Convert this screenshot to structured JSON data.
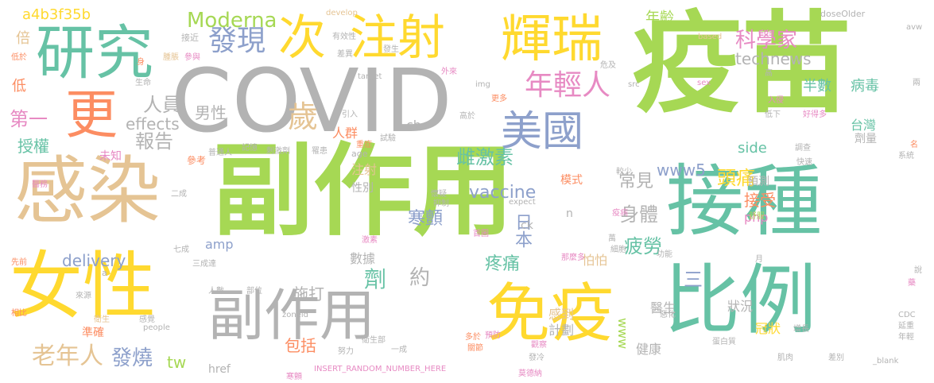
{
  "words": [
    {
      "text": "副作用",
      "color": "#a6d854"
    },
    {
      "text": "疫苗",
      "color": "#a6d854"
    },
    {
      "text": "COVID",
      "color": "#b3b3b3"
    },
    {
      "text": "接種",
      "color": "#66c2a5"
    },
    {
      "text": "感染",
      "color": "#e5c494"
    },
    {
      "text": "女性",
      "color": "#ffd92f"
    },
    {
      "text": "比例",
      "color": "#66c2a5"
    },
    {
      "text": "免疫",
      "color": "#ffd92f"
    },
    {
      "text": "副作用",
      "color": "#b3b3b3"
    },
    {
      "text": "研究",
      "color": "#66c2a5"
    },
    {
      "text": "注射",
      "color": "#ffd92f"
    },
    {
      "text": "輝瑞",
      "color": "#ffd92f"
    },
    {
      "text": "次",
      "color": "#ffd92f"
    },
    {
      "text": "更",
      "color": "#fc8d62"
    },
    {
      "text": "美國",
      "color": "#8da0cb"
    },
    {
      "text": "發現",
      "color": "#8da0cb"
    },
    {
      "text": "Moderna",
      "color": "#a6d854"
    },
    {
      "text": "年輕人",
      "color": "#e78ac3"
    },
    {
      "text": "科學家",
      "color": "#e78ac3"
    },
    {
      "text": "technews",
      "color": "#b3b3b3"
    },
    {
      "text": "年齡",
      "color": "#a6d854"
    },
    {
      "text": "歲",
      "color": "#e5c494"
    },
    {
      "text": "人員",
      "color": "#b3b3b3"
    },
    {
      "text": "男性",
      "color": "#b3b3b3"
    },
    {
      "text": "報告",
      "color": "#b3b3b3"
    },
    {
      "text": "第一",
      "color": "#e78ac3"
    },
    {
      "text": "effects",
      "color": "#b3b3b3"
    },
    {
      "text": "授權",
      "color": "#66c2a5"
    },
    {
      "text": "雌激素",
      "color": "#66c2a5"
    },
    {
      "text": "www5",
      "color": "#8da0cb"
    },
    {
      "text": "常見",
      "color": "#b3b3b3"
    },
    {
      "text": "頭痛",
      "color": "#ffd92f"
    },
    {
      "text": "身體",
      "color": "#b3b3b3"
    },
    {
      "text": "接受",
      "color": "#fc8d62"
    },
    {
      "text": "疲勞",
      "color": "#66c2a5"
    },
    {
      "text": "vaccine",
      "color": "#8da0cb"
    },
    {
      "text": "delivery",
      "color": "#8da0cb"
    },
    {
      "text": "老年人",
      "color": "#e5c494"
    },
    {
      "text": "發燒",
      "color": "#8da0cb"
    },
    {
      "text": "寒顫",
      "color": "#8da0cb"
    },
    {
      "text": "疼痛",
      "color": "#66c2a5"
    },
    {
      "text": "約",
      "color": "#b3b3b3"
    },
    {
      "text": "劑",
      "color": "#66c2a5"
    },
    {
      "text": "包括",
      "color": "#fc8d62"
    },
    {
      "text": "施打",
      "color": "#b3b3b3"
    },
    {
      "text": "半數",
      "color": "#66c2a5"
    },
    {
      "text": "病毒",
      "color": "#66c2a5"
    },
    {
      "text": "台灣",
      "color": "#66c2a5"
    },
    {
      "text": "side",
      "color": "#66c2a5"
    },
    {
      "text": "日本",
      "color": "#8da0cb"
    },
    {
      "text": "三",
      "color": "#8da0cb"
    },
    {
      "text": "健康",
      "color": "#b3b3b3"
    },
    {
      "text": "冠狀",
      "color": "#ffd92f"
    },
    {
      "text": "計劃",
      "color": "#b3b3b3"
    },
    {
      "text": "感到",
      "color": "#e5c494"
    },
    {
      "text": "狀況",
      "color": "#b3b3b3"
    },
    {
      "text": "醫生",
      "color": "#b3b3b3"
    },
    {
      "text": "tw",
      "color": "#a6d854"
    },
    {
      "text": "www",
      "color": "#a6d854"
    },
    {
      "text": "href",
      "color": "#b3b3b3"
    },
    {
      "text": "amp",
      "color": "#8da0cb"
    },
    {
      "text": "php",
      "color": "#e78ac3"
    },
    {
      "text": "cb",
      "color": "#b3b3b3"
    },
    {
      "text": "ck",
      "color": "#b3b3b3"
    },
    {
      "text": "a4b3f35b",
      "color": "#ffd92f"
    },
    {
      "text": "倍",
      "color": "#e5c494"
    },
    {
      "text": "低",
      "color": "#fc8d62"
    },
    {
      "text": "劑量",
      "color": "#b3b3b3"
    },
    {
      "text": "預測",
      "color": "#b3b3b3"
    },
    {
      "text": "數據",
      "color": "#b3b3b3"
    },
    {
      "text": "人群",
      "color": "#fc8d62"
    },
    {
      "text": "注射",
      "color": "#e5c494"
    },
    {
      "text": "性別",
      "color": "#b3b3b3"
    },
    {
      "text": "模式",
      "color": "#fc8d62"
    },
    {
      "text": "怕怕",
      "color": "#e5c494"
    },
    {
      "text": "n",
      "color": "#b3b3b3"
    },
    {
      "text": "參考",
      "color": "#fc8d62"
    },
    {
      "text": "未知",
      "color": "#e78ac3"
    },
    {
      "text": "接近",
      "color": "#b3b3b3"
    },
    {
      "text": "有效性",
      "color": "#b3b3b3"
    },
    {
      "text": "develop",
      "color": "#e5c494"
    },
    {
      "text": "based",
      "color": "#e5c494"
    },
    {
      "text": "doseOlder",
      "color": "#b3b3b3"
    },
    {
      "text": "target",
      "color": "#b3b3b3"
    },
    {
      "text": "img",
      "color": "#b3b3b3"
    },
    {
      "text": "src",
      "color": "#b3b3b3"
    },
    {
      "text": "sex",
      "color": "#e78ac3"
    },
    {
      "text": "age",
      "color": "#b3b3b3"
    },
    {
      "text": "expect",
      "color": "#b3b3b3"
    },
    {
      "text": "people",
      "color": "#b3b3b3"
    },
    {
      "text": "zoneid",
      "color": "#b3b3b3"
    },
    {
      "text": "_blank",
      "color": "#b3b3b3"
    },
    {
      "text": "INSERT_RANDOM_NUMBER_HERE",
      "color": "#e78ac3"
    },
    {
      "text": "CDC",
      "color": "#b3b3b3"
    },
    {
      "text": "低於",
      "color": "#fc8d62"
    },
    {
      "text": "生命",
      "color": "#b3b3b3"
    },
    {
      "text": "普通人",
      "color": "#b3b3b3"
    },
    {
      "text": "記憶",
      "color": "#b3b3b3"
    },
    {
      "text": "刺激劑",
      "color": "#b3b3b3"
    },
    {
      "text": "罹患",
      "color": "#b3b3b3"
    },
    {
      "text": "重症",
      "color": "#fc8d62"
    },
    {
      "text": "試驗",
      "color": "#b3b3b3"
    },
    {
      "text": "引入",
      "color": "#b3b3b3"
    },
    {
      "text": "高於",
      "color": "#b3b3b3"
    },
    {
      "text": "更多",
      "color": "#fc8d62"
    },
    {
      "text": "外來",
      "color": "#e78ac3"
    },
    {
      "text": "低下",
      "color": "#b3b3b3"
    },
    {
      "text": "好得多",
      "color": "#e78ac3"
    },
    {
      "text": "入侵",
      "color": "#e78ac3"
    },
    {
      "text": "調查",
      "color": "#b3b3b3"
    },
    {
      "text": "快速",
      "color": "#b3b3b3"
    },
    {
      "text": "系統",
      "color": "#b3b3b3"
    },
    {
      "text": "名",
      "color": "#fc8d62"
    },
    {
      "text": "舒服",
      "color": "#a6d854"
    },
    {
      "text": "較少",
      "color": "#b3b3b3"
    },
    {
      "text": "懷疑",
      "color": "#b3b3b3"
    },
    {
      "text": "抑制",
      "color": "#b3b3b3"
    },
    {
      "text": "首圖",
      "color": "#e78ac3"
    },
    {
      "text": "激素",
      "color": "#e78ac3"
    },
    {
      "text": "疫病",
      "color": "#e78ac3"
    },
    {
      "text": "萬",
      "color": "#b3b3b3"
    },
    {
      "text": "細胞",
      "color": "#b3b3b3"
    },
    {
      "text": "那麼多",
      "color": "#e78ac3"
    },
    {
      "text": "功能",
      "color": "#b3b3b3"
    },
    {
      "text": "預防",
      "color": "#e78ac3"
    },
    {
      "text": "觀察",
      "color": "#e78ac3"
    },
    {
      "text": "惡化",
      "color": "#b3b3b3"
    },
    {
      "text": "增長",
      "color": "#b3b3b3"
    },
    {
      "text": "藥",
      "color": "#e78ac3"
    },
    {
      "text": "說",
      "color": "#b3b3b3"
    },
    {
      "text": "衛生部",
      "color": "#b3b3b3"
    },
    {
      "text": "一成",
      "color": "#b3b3b3"
    },
    {
      "text": "多於",
      "color": "#fc8d62"
    },
    {
      "text": "發冷",
      "color": "#b3b3b3"
    },
    {
      "text": "關節",
      "color": "#fc8d62"
    },
    {
      "text": "莫德納",
      "color": "#e78ac3"
    },
    {
      "text": "蛋白質",
      "color": "#b3b3b3"
    },
    {
      "text": "肌肉",
      "color": "#b3b3b3"
    },
    {
      "text": "差別",
      "color": "#b3b3b3"
    },
    {
      "text": "延重",
      "color": "#b3b3b3"
    },
    {
      "text": "年輕",
      "color": "#b3b3b3"
    },
    {
      "text": "努力",
      "color": "#b3b3b3"
    },
    {
      "text": "寒顫",
      "color": "#e78ac3"
    },
    {
      "text": "部位",
      "color": "#b3b3b3"
    },
    {
      "text": "人數",
      "color": "#b3b3b3"
    },
    {
      "text": "來源",
      "color": "#b3b3b3"
    },
    {
      "text": "相比",
      "color": "#fc8d62"
    },
    {
      "text": "先前",
      "color": "#fc8d62"
    },
    {
      "text": "衛生",
      "color": "#e5c494"
    },
    {
      "text": "感覺",
      "color": "#b3b3b3"
    },
    {
      "text": "準確",
      "color": "#fc8d62"
    },
    {
      "text": "a",
      "color": "#b3b3b3"
    },
    {
      "text": "三成",
      "color": "#b3b3b3"
    },
    {
      "text": "七成",
      "color": "#b3b3b3"
    },
    {
      "text": "二成",
      "color": "#b3b3b3"
    },
    {
      "text": "醫務",
      "color": "#e78ac3"
    },
    {
      "text": "參與",
      "color": "#e78ac3"
    },
    {
      "text": "腫脹",
      "color": "#e5c494"
    },
    {
      "text": "差異",
      "color": "#b3b3b3"
    },
    {
      "text": "發生",
      "color": "#b3b3b3"
    },
    {
      "text": "身",
      "color": "#fc8d62"
    },
    {
      "text": "高",
      "color": "#b3b3b3"
    },
    {
      "text": "危及",
      "color": "#b3b3b3"
    },
    {
      "text": "avw",
      "color": "#b3b3b3"
    },
    {
      "text": "兩",
      "color": "#b3b3b3"
    },
    {
      "text": "月",
      "color": "#b3b3b3"
    },
    {
      "text": "達",
      "color": "#b3b3b3"
    }
  ]
}
